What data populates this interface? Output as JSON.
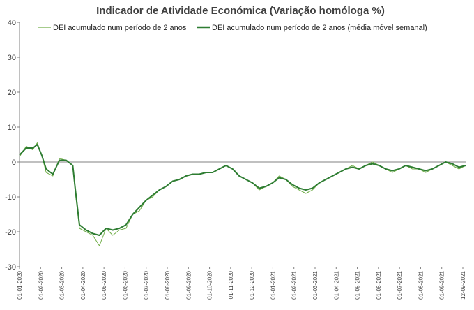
{
  "chart_data": {
    "type": "line",
    "title": "Indicador de Atividade Económica (Variação homóloga %)",
    "xlabel": "",
    "ylabel": "",
    "ylim": [
      -30,
      40
    ],
    "yticks": [
      40,
      30,
      20,
      10,
      0,
      -10,
      -20,
      -30
    ],
    "xticks": [
      "01-01-2020",
      "01-02-2020",
      "01-03-2020",
      "01-04-2020",
      "01-05-2020",
      "01-06-2020",
      "01-07-2020",
      "01-08-2020",
      "01-09-2020",
      "01-10-2020",
      "01-11-2020",
      "01-12-2020",
      "01-01-2021",
      "01-02-2021",
      "01-03-2021",
      "01-04-2021",
      "01-05-2021",
      "01-06-2021",
      "01-07-2021",
      "01-08-2021",
      "01-09-2021",
      "12-09-2021"
    ],
    "legend": {
      "position": "top",
      "entries": [
        "DEI acumulado num período de 2 anos",
        "DEI acumulado num período de 2 anos (média móvel semanal)"
      ]
    },
    "series": [
      {
        "name": "DEI acumulado num período de 2 anos",
        "color": "#70ad47",
        "points": [
          [
            0,
            1.5
          ],
          [
            15,
            4.5
          ],
          [
            30,
            3.5
          ],
          [
            40,
            5.5
          ],
          [
            50,
            2
          ],
          [
            60,
            -3
          ],
          [
            75,
            -4
          ],
          [
            90,
            1
          ],
          [
            105,
            0.5
          ],
          [
            120,
            -1
          ],
          [
            125,
            -8
          ],
          [
            135,
            -19
          ],
          [
            150,
            -20
          ],
          [
            165,
            -21
          ],
          [
            180,
            -24
          ],
          [
            195,
            -19
          ],
          [
            210,
            -21
          ],
          [
            225,
            -19.5
          ],
          [
            240,
            -19
          ],
          [
            255,
            -15
          ],
          [
            270,
            -14
          ],
          [
            285,
            -11
          ],
          [
            300,
            -10
          ],
          [
            315,
            -8
          ],
          [
            330,
            -7
          ],
          [
            345,
            -5.5
          ],
          [
            360,
            -5
          ],
          [
            375,
            -4
          ],
          [
            390,
            -3.5
          ],
          [
            405,
            -3.5
          ],
          [
            420,
            -3
          ],
          [
            435,
            -3
          ],
          [
            450,
            -2
          ],
          [
            465,
            -1
          ],
          [
            480,
            -2
          ],
          [
            495,
            -4
          ],
          [
            510,
            -5
          ],
          [
            525,
            -6
          ],
          [
            540,
            -8
          ],
          [
            555,
            -7
          ],
          [
            570,
            -6
          ],
          [
            585,
            -4
          ],
          [
            600,
            -5
          ],
          [
            615,
            -7
          ],
          [
            630,
            -8
          ],
          [
            645,
            -9
          ],
          [
            660,
            -8
          ],
          [
            675,
            -6
          ],
          [
            690,
            -5
          ],
          [
            705,
            -4
          ],
          [
            720,
            -3
          ],
          [
            735,
            -2
          ],
          [
            750,
            -1
          ],
          [
            765,
            -2
          ],
          [
            780,
            -1
          ],
          [
            795,
            0
          ],
          [
            810,
            -1
          ],
          [
            825,
            -2
          ],
          [
            840,
            -3
          ],
          [
            855,
            -2
          ],
          [
            870,
            -1
          ],
          [
            885,
            -2
          ],
          [
            900,
            -2
          ],
          [
            915,
            -3
          ],
          [
            930,
            -2
          ],
          [
            945,
            -1
          ],
          [
            960,
            0
          ],
          [
            975,
            -1
          ],
          [
            990,
            -2
          ],
          [
            1005,
            -1
          ]
        ]
      },
      {
        "name": "DEI acumulado num período de 2 anos (média móvel semanal)",
        "color": "#2e7d32",
        "points": [
          [
            0,
            2
          ],
          [
            15,
            4
          ],
          [
            30,
            4
          ],
          [
            40,
            5
          ],
          [
            50,
            2
          ],
          [
            60,
            -2
          ],
          [
            75,
            -3.5
          ],
          [
            90,
            0.5
          ],
          [
            105,
            0.5
          ],
          [
            120,
            -1
          ],
          [
            125,
            -7
          ],
          [
            135,
            -18
          ],
          [
            150,
            -19.5
          ],
          [
            165,
            -20.5
          ],
          [
            180,
            -21
          ],
          [
            195,
            -19
          ],
          [
            210,
            -19.5
          ],
          [
            225,
            -19
          ],
          [
            240,
            -18
          ],
          [
            255,
            -15
          ],
          [
            270,
            -13
          ],
          [
            285,
            -11
          ],
          [
            300,
            -9.5
          ],
          [
            315,
            -8
          ],
          [
            330,
            -7
          ],
          [
            345,
            -5.5
          ],
          [
            360,
            -5
          ],
          [
            375,
            -4
          ],
          [
            390,
            -3.5
          ],
          [
            405,
            -3.5
          ],
          [
            420,
            -3
          ],
          [
            435,
            -3
          ],
          [
            450,
            -2
          ],
          [
            465,
            -1
          ],
          [
            480,
            -2
          ],
          [
            495,
            -4
          ],
          [
            510,
            -5
          ],
          [
            525,
            -6
          ],
          [
            540,
            -7.5
          ],
          [
            555,
            -7
          ],
          [
            570,
            -6
          ],
          [
            585,
            -4.5
          ],
          [
            600,
            -5
          ],
          [
            615,
            -6.5
          ],
          [
            630,
            -7.5
          ],
          [
            645,
            -8
          ],
          [
            660,
            -7.5
          ],
          [
            675,
            -6
          ],
          [
            690,
            -5
          ],
          [
            705,
            -4
          ],
          [
            720,
            -3
          ],
          [
            735,
            -2
          ],
          [
            750,
            -1.5
          ],
          [
            765,
            -2
          ],
          [
            780,
            -1
          ],
          [
            795,
            -0.5
          ],
          [
            810,
            -1
          ],
          [
            825,
            -2
          ],
          [
            840,
            -2.5
          ],
          [
            855,
            -2
          ],
          [
            870,
            -1
          ],
          [
            885,
            -1.5
          ],
          [
            900,
            -2
          ],
          [
            915,
            -2.5
          ],
          [
            930,
            -2
          ],
          [
            945,
            -1
          ],
          [
            960,
            0
          ],
          [
            975,
            -0.5
          ],
          [
            990,
            -1.5
          ],
          [
            1005,
            -1
          ]
        ]
      }
    ]
  }
}
